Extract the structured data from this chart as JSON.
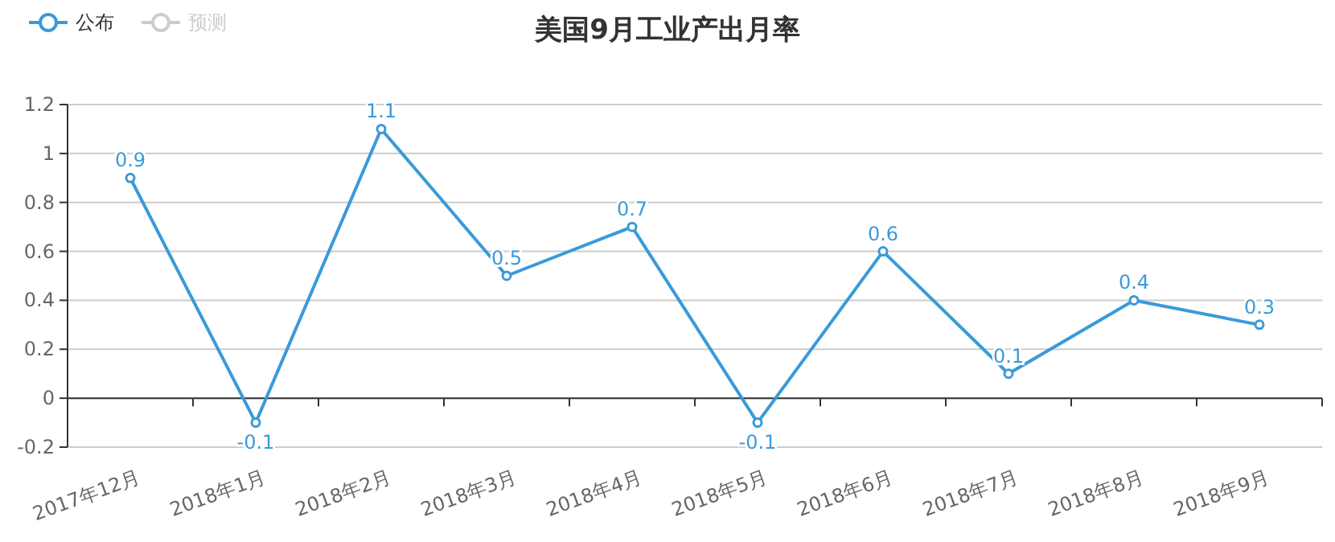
{
  "chart_data": {
    "type": "line",
    "title": "美国9月工业产出月率",
    "categories": [
      "2017年12月",
      "2018年1月",
      "2018年2月",
      "2018年3月",
      "2018年4月",
      "2018年5月",
      "2018年6月",
      "2018年7月",
      "2018年8月",
      "2018年9月"
    ],
    "series": [
      {
        "name": "公布",
        "color": "#3a9ad9",
        "values": [
          0.9,
          -0.1,
          1.1,
          0.5,
          0.7,
          -0.1,
          0.6,
          0.1,
          0.4,
          0.3
        ]
      },
      {
        "name": "预测",
        "color": "#cccccc",
        "values": [
          null,
          null,
          null,
          null,
          null,
          null,
          null,
          null,
          null,
          null
        ]
      }
    ],
    "ylim": [
      -0.2,
      1.2
    ],
    "yticks": [
      -0.2,
      0,
      0.2,
      0.4,
      0.6,
      0.8,
      1,
      1.2
    ],
    "grid": "y",
    "legend": "top left",
    "marker": "circle",
    "data_labels": true
  }
}
